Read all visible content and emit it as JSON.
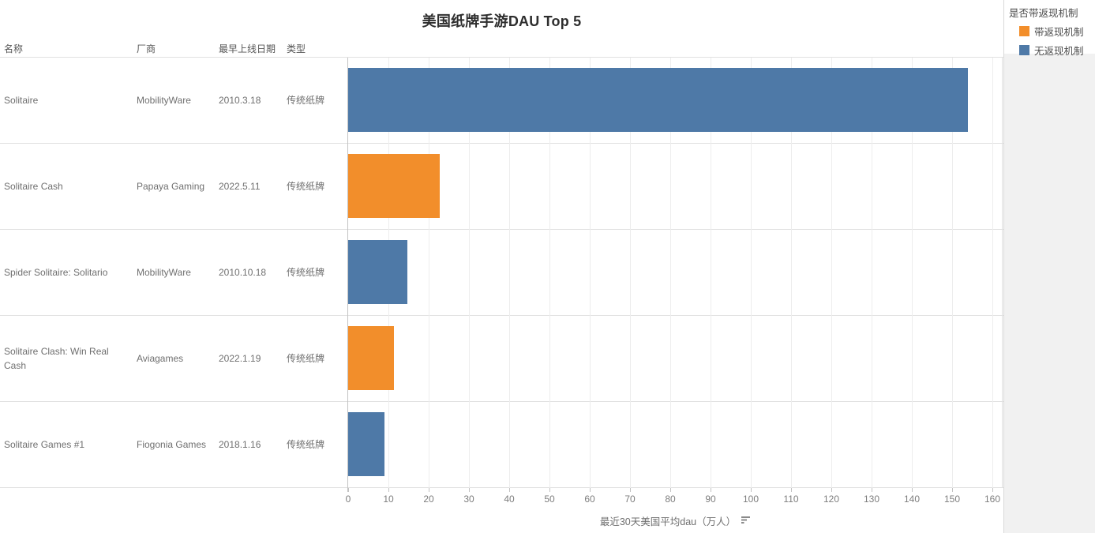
{
  "title": "美国纸牌手游DAU Top 5",
  "table": {
    "headers": {
      "name": "名称",
      "vendor": "厂商",
      "launch_date": "最早上线日期",
      "type": "类型"
    },
    "rows": [
      {
        "name": "Solitaire",
        "vendor": "MobilityWare",
        "launch_date": "2010.3.18",
        "type": "传统纸牌"
      },
      {
        "name": "Solitaire Cash",
        "vendor": "Papaya Gaming",
        "launch_date": "2022.5.11",
        "type": "传统纸牌"
      },
      {
        "name": "Spider Solitaire: Solitario",
        "vendor": "MobilityWare",
        "launch_date": "2010.10.18",
        "type": "传统纸牌"
      },
      {
        "name": "Solitaire Clash: Win Real Cash",
        "vendor": "Aviagames",
        "launch_date": "2022.1.19",
        "type": "传统纸牌"
      },
      {
        "name": "Solitaire Games #1",
        "vendor": "Fiogonia Games",
        "launch_date": "2018.1.16",
        "type": "传统纸牌"
      }
    ]
  },
  "legend": {
    "title": "是否带返现机制",
    "items": [
      {
        "label": "带返现机制",
        "color": "#f28e2b"
      },
      {
        "label": "无返现机制",
        "color": "#4e79a7"
      }
    ]
  },
  "chart_data": {
    "type": "bar",
    "orientation": "horizontal",
    "title": "美国纸牌手游DAU Top 5",
    "categories": [
      "Solitaire",
      "Solitaire Cash",
      "Spider Solitaire: Solitario",
      "Solitaire Clash: Win Real Cash",
      "Solitaire Games #1"
    ],
    "values": [
      154,
      22.7,
      14.7,
      11.4,
      9
    ],
    "groups": [
      "无返现机制",
      "带返现机制",
      "无返现机制",
      "带返现机制",
      "无返现机制"
    ],
    "group_colors": {
      "带返现机制": "#f28e2b",
      "无返现机制": "#4e79a7"
    },
    "xlabel": "最近30天美国平均dau（万人）",
    "xlim": [
      0,
      160
    ],
    "tick_step": 10,
    "grid": true,
    "legend_title": "是否带返现机制",
    "legend_position": "top-right",
    "sort": "descending"
  }
}
